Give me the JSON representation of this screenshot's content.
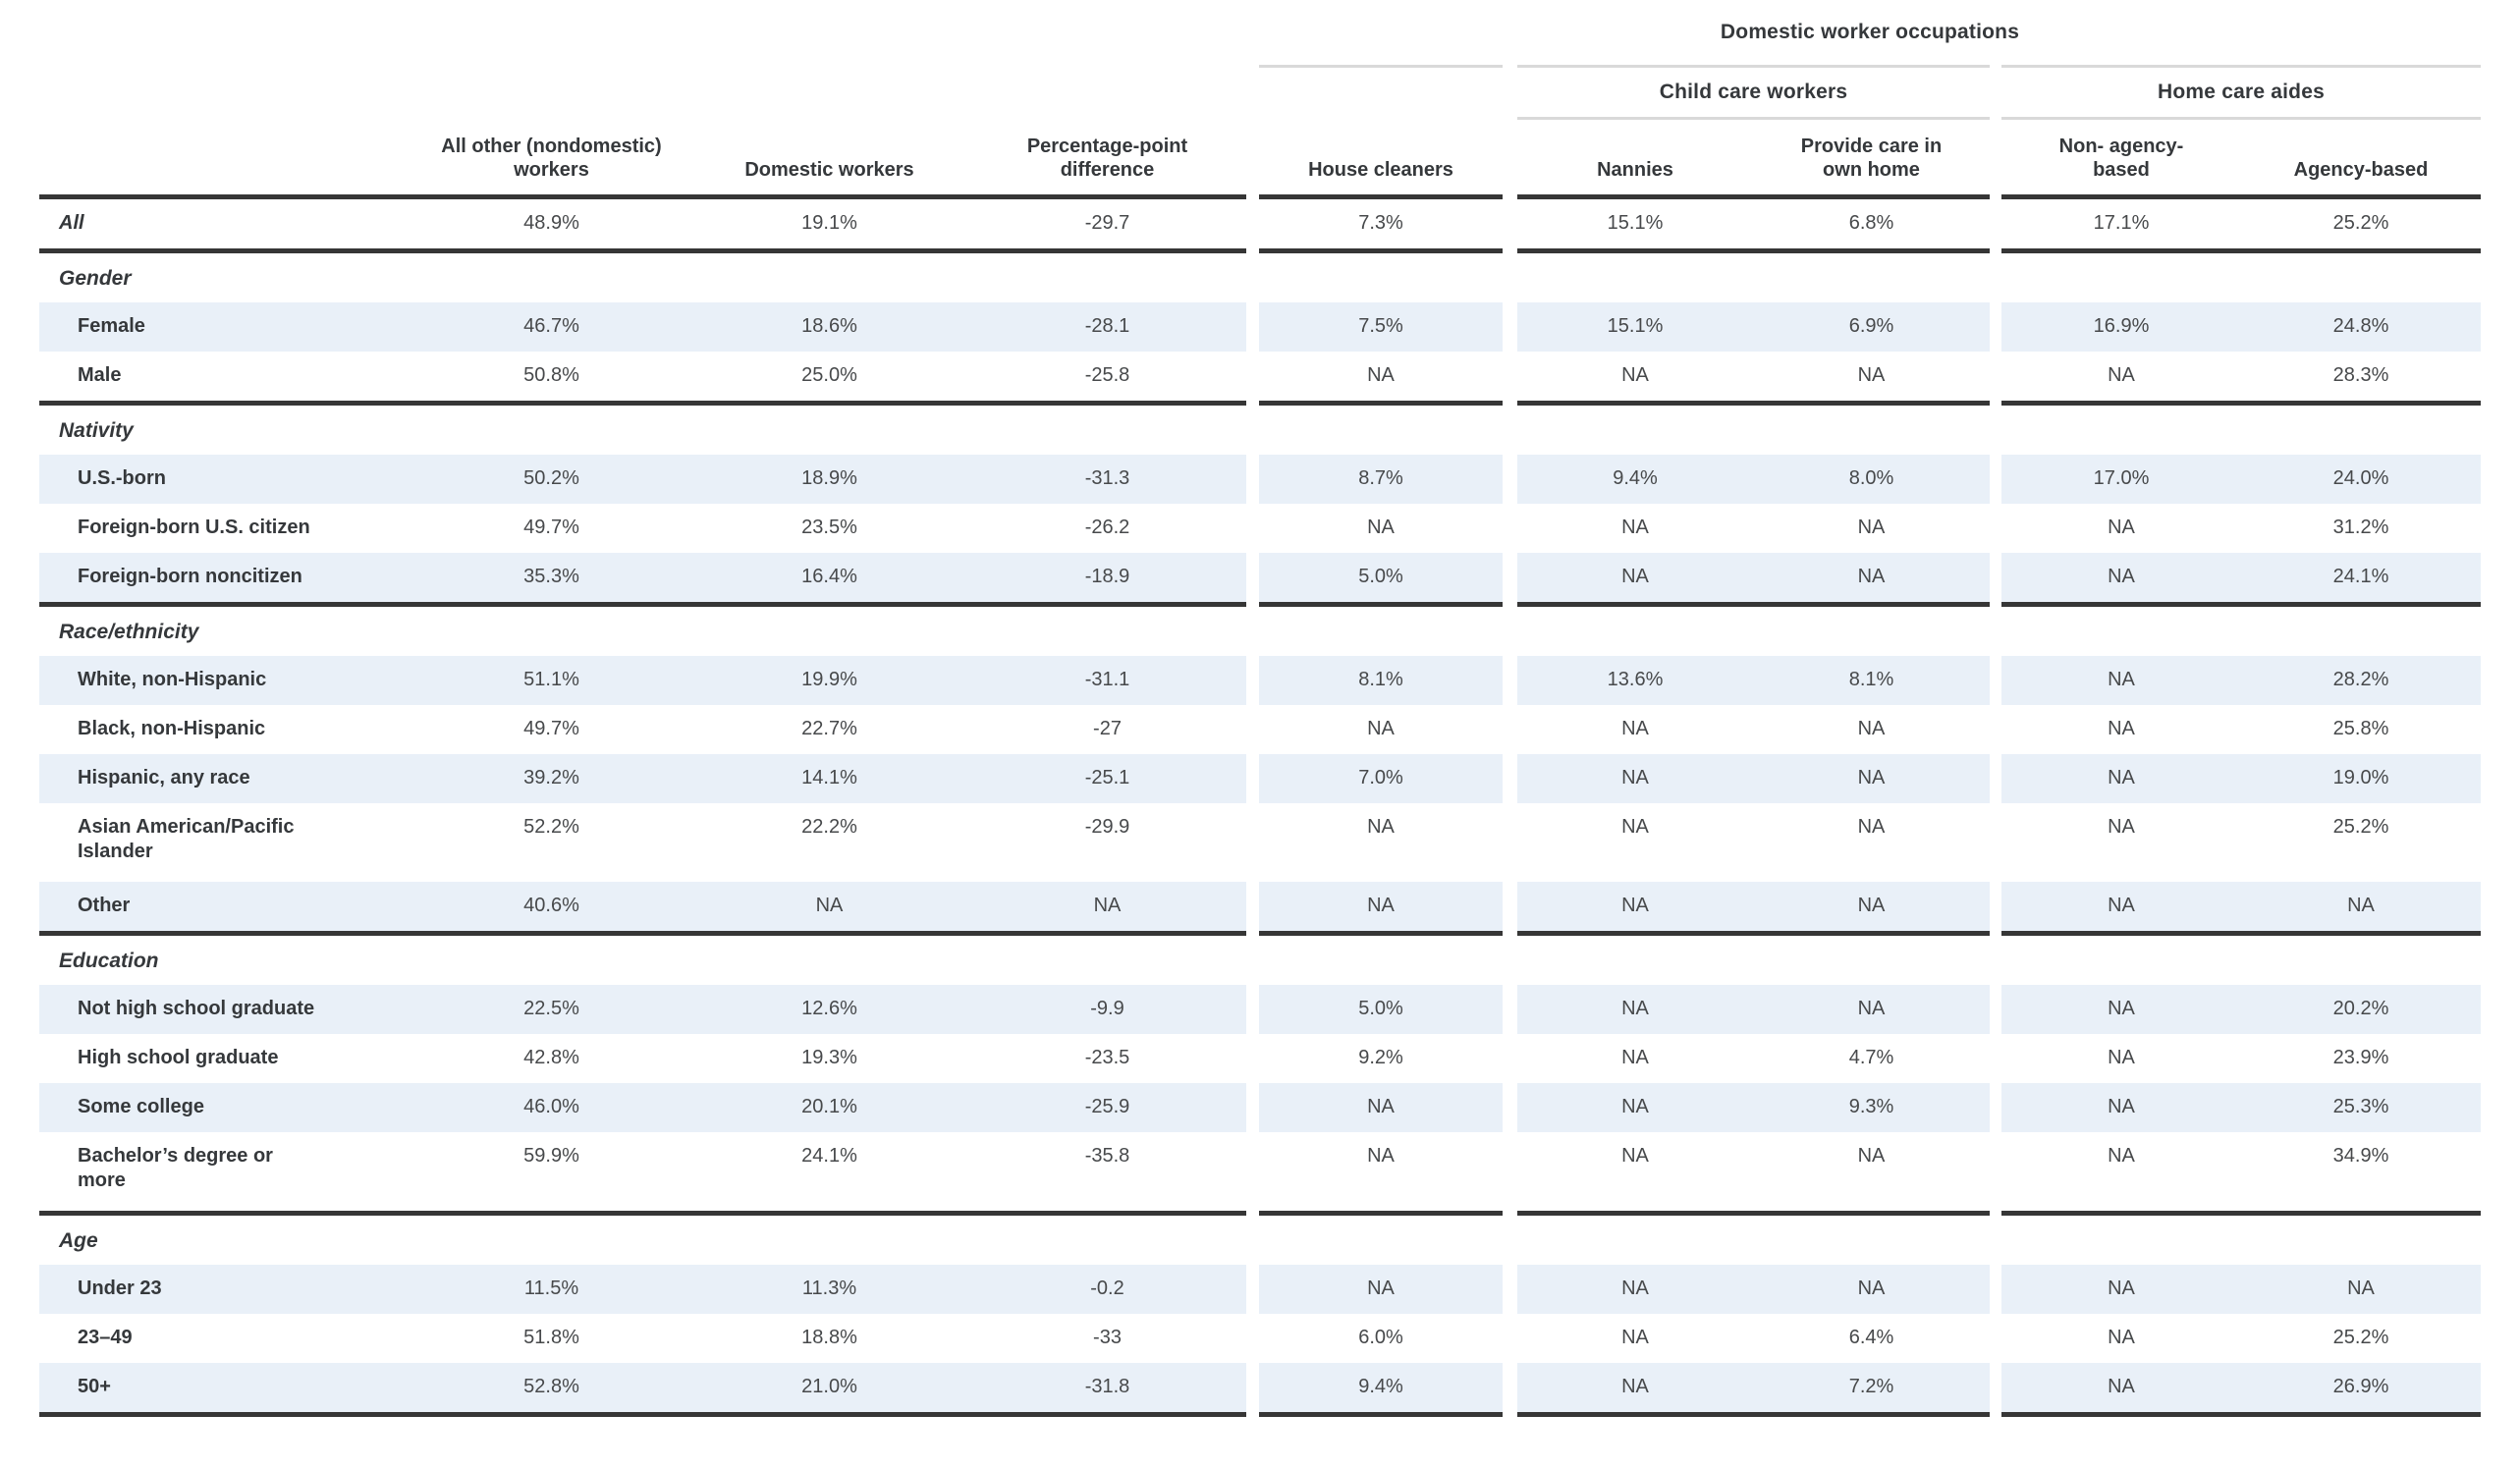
{
  "colors": {
    "stripe": "#e9f0f8",
    "rule": "#363636",
    "light_rule": "#d9d9d9",
    "heading_ink": "#35383b",
    "number_ink": "#47494b"
  },
  "chart_data": {
    "type": "table",
    "top_group_label": "Domestic worker occupations",
    "subgroup_labels": {
      "child_care": "Child care workers",
      "home_care": "Home care aides"
    },
    "column_headers": {
      "row_label": "",
      "nondomestic": "All other (nondomestic)\nworkers",
      "domestic": "Domestic workers",
      "pp_diff": "Percentage-point\ndifference",
      "house_cleaners": "House cleaners",
      "nannies": "Nannies",
      "own_home": "Provide care in\nown home",
      "non_agency": "Non- agency-\nbased",
      "agency": "Agency-based"
    },
    "sections": [
      {
        "heading": "",
        "rows": [
          {
            "label": "All",
            "values": [
              "48.9%",
              "19.1%",
              "-29.7",
              "7.3%",
              "15.1%",
              "6.8%",
              "17.1%",
              "25.2%"
            ]
          }
        ]
      },
      {
        "heading": "Gender",
        "rows": [
          {
            "label": "Female",
            "values": [
              "46.7%",
              "18.6%",
              "-28.1",
              "7.5%",
              "15.1%",
              "6.9%",
              "16.9%",
              "24.8%"
            ]
          },
          {
            "label": "Male",
            "values": [
              "50.8%",
              "25.0%",
              "-25.8",
              "NA",
              "NA",
              "NA",
              "NA",
              "28.3%"
            ]
          }
        ]
      },
      {
        "heading": "Nativity",
        "rows": [
          {
            "label": "U.S.-born",
            "values": [
              "50.2%",
              "18.9%",
              "-31.3",
              "8.7%",
              "9.4%",
              "8.0%",
              "17.0%",
              "24.0%"
            ]
          },
          {
            "label": "Foreign-born U.S. citizen",
            "values": [
              "49.7%",
              "23.5%",
              "-26.2",
              "NA",
              "NA",
              "NA",
              "NA",
              "31.2%"
            ]
          },
          {
            "label": "Foreign-born noncitizen",
            "values": [
              "35.3%",
              "16.4%",
              "-18.9",
              "5.0%",
              "NA",
              "NA",
              "NA",
              "24.1%"
            ]
          }
        ]
      },
      {
        "heading": "Race/ethnicity",
        "rows": [
          {
            "label": "White, non-Hispanic",
            "values": [
              "51.1%",
              "19.9%",
              "-31.1",
              "8.1%",
              "13.6%",
              "8.1%",
              "NA",
              "28.2%"
            ]
          },
          {
            "label": "Black, non-Hispanic",
            "values": [
              "49.7%",
              "22.7%",
              "-27",
              "NA",
              "NA",
              "NA",
              "NA",
              "25.8%"
            ]
          },
          {
            "label": "Hispanic, any race",
            "values": [
              "39.2%",
              "14.1%",
              "-25.1",
              "7.0%",
              "NA",
              "NA",
              "NA",
              "19.0%"
            ]
          },
          {
            "label": "Asian American/Pacific\nIslander",
            "values": [
              "52.2%",
              "22.2%",
              "-29.9",
              "NA",
              "NA",
              "NA",
              "NA",
              "25.2%"
            ]
          },
          {
            "label": "Other",
            "values": [
              "40.6%",
              "NA",
              "NA",
              "NA",
              "NA",
              "NA",
              "NA",
              "NA"
            ]
          }
        ]
      },
      {
        "heading": "Education",
        "rows": [
          {
            "label": "Not high school graduate",
            "values": [
              "22.5%",
              "12.6%",
              "-9.9",
              "5.0%",
              "NA",
              "NA",
              "NA",
              "20.2%"
            ]
          },
          {
            "label": "High school graduate",
            "values": [
              "42.8%",
              "19.3%",
              "-23.5",
              "9.2%",
              "NA",
              "4.7%",
              "NA",
              "23.9%"
            ]
          },
          {
            "label": "Some college",
            "values": [
              "46.0%",
              "20.1%",
              "-25.9",
              "NA",
              "NA",
              "9.3%",
              "NA",
              "25.3%"
            ]
          },
          {
            "label": "Bachelor’s degree or\nmore",
            "values": [
              "59.9%",
              "24.1%",
              "-35.8",
              "NA",
              "NA",
              "NA",
              "NA",
              "34.9%"
            ]
          }
        ]
      },
      {
        "heading": "Age",
        "rows": [
          {
            "label": "Under 23",
            "values": [
              "11.5%",
              "11.3%",
              "-0.2",
              "NA",
              "NA",
              "NA",
              "NA",
              "NA"
            ]
          },
          {
            "label": "23–49",
            "values": [
              "51.8%",
              "18.8%",
              "-33",
              "6.0%",
              "NA",
              "6.4%",
              "NA",
              "25.2%"
            ]
          },
          {
            "label": "50+",
            "values": [
              "52.8%",
              "21.0%",
              "-31.8",
              "9.4%",
              "NA",
              "7.2%",
              "NA",
              "26.9%"
            ]
          }
        ]
      }
    ]
  }
}
